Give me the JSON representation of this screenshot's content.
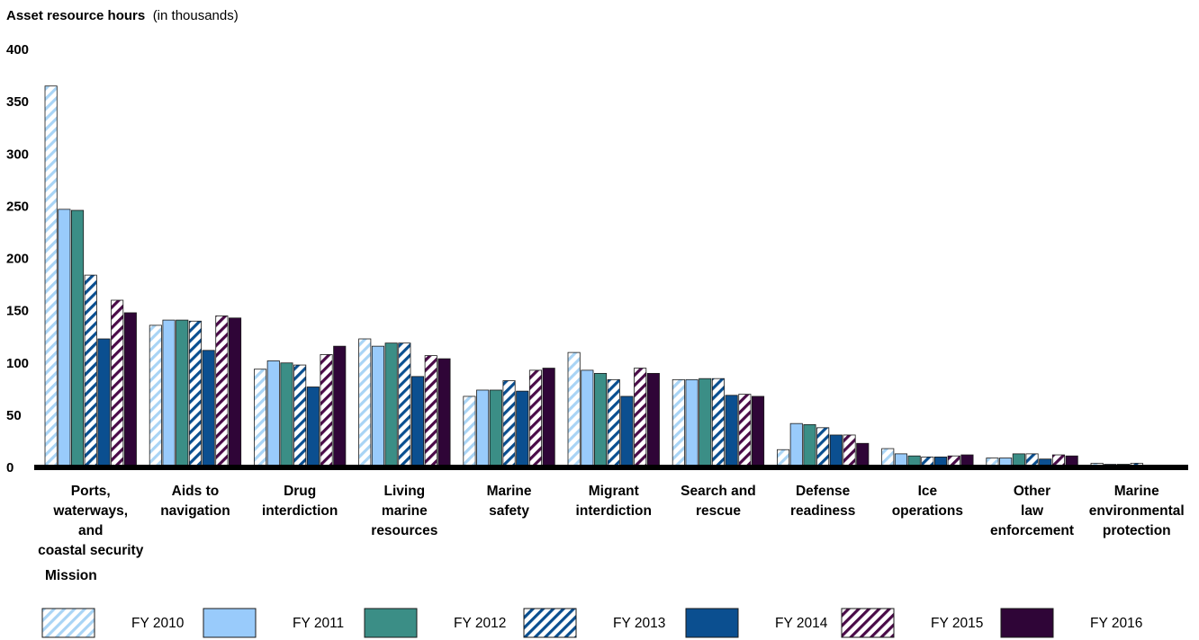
{
  "chart_data": {
    "type": "bar",
    "title": "Asset resource hours",
    "title_unit": "(in thousands)",
    "xlabel": "Mission",
    "ylabel": "",
    "ylim": [
      0,
      400
    ],
    "yticks": [
      0,
      50,
      100,
      150,
      200,
      250,
      300,
      350,
      400
    ],
    "grid": false,
    "legend_position": "bottom",
    "categories": [
      [
        "Ports,",
        "waterways,",
        "and",
        "coastal security"
      ],
      [
        "Aids to",
        "navigation"
      ],
      [
        "Drug",
        "interdiction"
      ],
      [
        "Living",
        "marine",
        "resources"
      ],
      [
        "Marine",
        "safety"
      ],
      [
        "Migrant",
        "interdiction"
      ],
      [
        "Search and",
        "rescue"
      ],
      [
        "Defense",
        "readiness"
      ],
      [
        "Ice",
        "operations"
      ],
      [
        "Other",
        "law",
        "enforcement"
      ],
      [
        "Marine",
        "environmental",
        "protection"
      ]
    ],
    "series": [
      {
        "name": "FY 2010",
        "color": "#a9d4f5",
        "pattern": "hatch",
        "values": [
          365,
          136,
          94,
          123,
          68,
          110,
          84,
          17,
          18,
          9,
          4
        ]
      },
      {
        "name": "FY 2011",
        "color": "#99cbfb",
        "pattern": "solid",
        "values": [
          247,
          141,
          102,
          116,
          74,
          93,
          84,
          42,
          13,
          9,
          3
        ]
      },
      {
        "name": "FY 2012",
        "color": "#3b8e86",
        "pattern": "solid",
        "values": [
          246,
          141,
          100,
          119,
          74,
          90,
          85,
          41,
          11,
          13,
          3
        ]
      },
      {
        "name": "FY 2013",
        "color": "#0a4f90",
        "pattern": "hatch",
        "values": [
          184,
          140,
          98,
          119,
          83,
          84,
          85,
          38,
          10,
          13,
          4
        ]
      },
      {
        "name": "FY 2014",
        "color": "#0b4f90",
        "pattern": "solid",
        "values": [
          123,
          112,
          77,
          87,
          73,
          68,
          69,
          31,
          10,
          8,
          2
        ]
      },
      {
        "name": "FY 2015",
        "color": "#4a0b48",
        "pattern": "hatch",
        "values": [
          160,
          145,
          108,
          107,
          93,
          95,
          70,
          31,
          11,
          12,
          2
        ]
      },
      {
        "name": "FY 2016",
        "color": "#2f0537",
        "pattern": "solid",
        "values": [
          148,
          143,
          116,
          104,
          95,
          90,
          68,
          23,
          12,
          11,
          2
        ]
      }
    ]
  }
}
